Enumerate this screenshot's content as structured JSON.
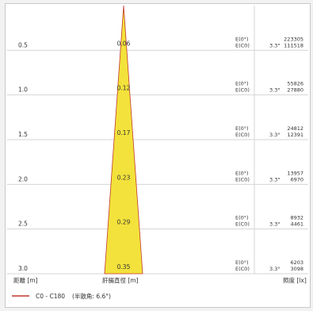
{
  "chart_data": {
    "type": "area",
    "x_axis_label": "距離 [m]",
    "middle_axis_label": "肝腸直徑 [m]",
    "right_axis_label": "照度 [lx]",
    "legend": {
      "label": "C0 - C180",
      "note": "(半散角: 6.6°)"
    },
    "colors": {
      "beam_fill": "#f3e23b",
      "beam_stroke": "#c0392b",
      "grid": "#d4d4d4",
      "text": "#333333"
    },
    "rows": [
      {
        "distance": "0.5",
        "diameter": "0.06",
        "e0_label": "E(0°)",
        "ec0_label": "E(C0)",
        "angle": "3.3°",
        "e0": "223305",
        "ec0": "111518"
      },
      {
        "distance": "1.0",
        "diameter": "0.12",
        "e0_label": "E(0°)",
        "ec0_label": "E(C0)",
        "angle": "3.3°",
        "e0": "55826",
        "ec0": "27880"
      },
      {
        "distance": "1.5",
        "diameter": "0.17",
        "e0_label": "E(0°)",
        "ec0_label": "E(C0)",
        "angle": "3.3°",
        "e0": "24812",
        "ec0": "12391"
      },
      {
        "distance": "2.0",
        "diameter": "0.23",
        "e0_label": "E(0°)",
        "ec0_label": "E(C0)",
        "angle": "3.3°",
        "e0": "13957",
        "ec0": "6970"
      },
      {
        "distance": "2.5",
        "diameter": "0.29",
        "e0_label": "E(0°)",
        "ec0_label": "E(C0)",
        "angle": "3.3°",
        "e0": "8932",
        "ec0": "4461"
      },
      {
        "distance": "3.0",
        "diameter": "0.35",
        "e0_label": "E(0°)",
        "ec0_label": "E(C0)",
        "angle": "3.3°",
        "e0": "6203",
        "ec0": "3098"
      }
    ]
  }
}
